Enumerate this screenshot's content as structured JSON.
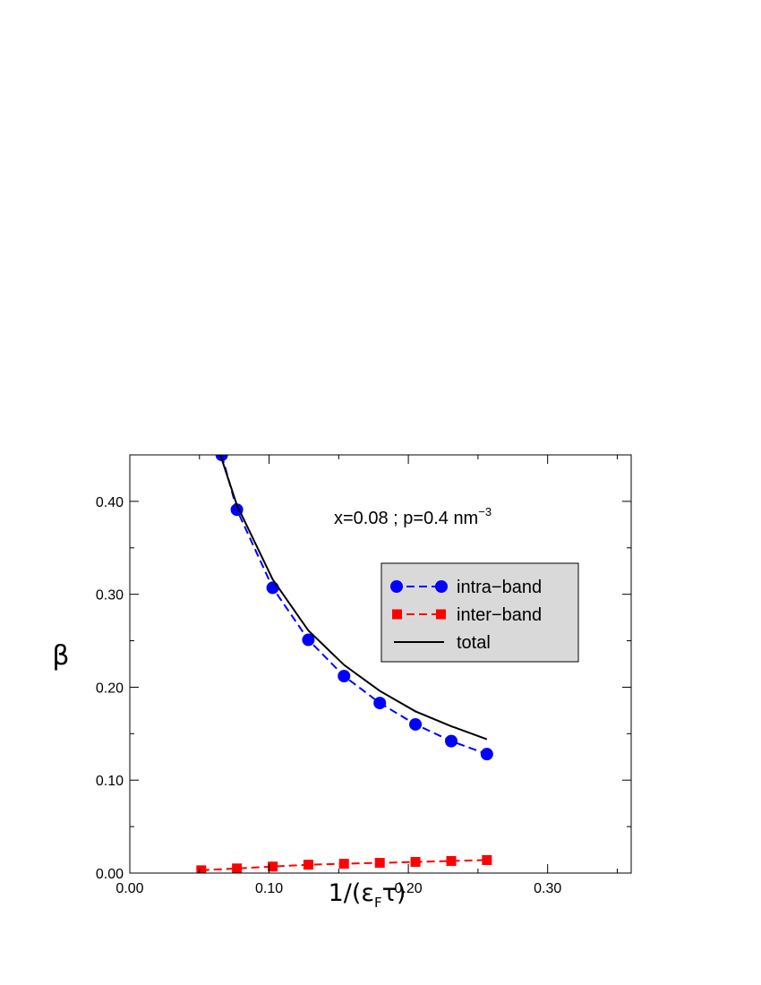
{
  "chart_data": {
    "type": "line",
    "xlabel": {
      "prefix": "1/(ε",
      "sub": "F",
      "suffix": "τ)"
    },
    "ylabel": "β",
    "xlim": [
      0.0,
      0.36
    ],
    "ylim": [
      0.0,
      0.45
    ],
    "xticks": [
      0.0,
      0.1,
      0.2,
      0.3
    ],
    "xtick_labels": [
      "0.00",
      "0.10",
      "0.20",
      "0.30"
    ],
    "yticks": [
      0.0,
      0.1,
      0.2,
      0.3,
      0.4
    ],
    "ytick_labels": [
      "0.00",
      "0.10",
      "0.20",
      "0.30",
      "0.40"
    ],
    "annotation": {
      "text": "x=0.08 ;  p=0.4 nm",
      "sup": "−3"
    },
    "legend_position": "upper-right",
    "series": [
      {
        "name": "intra−band",
        "color": "#0000ff",
        "line_style": "dashed",
        "marker": "circle",
        "x": [
          0.066,
          0.0769,
          0.1026,
          0.1282,
          0.1538,
          0.1795,
          0.2051,
          0.2308,
          0.2564
        ],
        "y": [
          0.45,
          0.391,
          0.307,
          0.251,
          0.212,
          0.183,
          0.16,
          0.142,
          0.128
        ]
      },
      {
        "name": "inter−band",
        "color": "#ff0000",
        "line_style": "dashed",
        "marker": "square",
        "x": [
          0.0513,
          0.0769,
          0.1026,
          0.1282,
          0.1538,
          0.1795,
          0.2051,
          0.2308,
          0.2564
        ],
        "y": [
          0.003,
          0.005,
          0.007,
          0.009,
          0.01,
          0.011,
          0.012,
          0.013,
          0.014
        ]
      },
      {
        "name": "total",
        "color": "#000000",
        "line_style": "solid",
        "marker": "none",
        "x": [
          0.065,
          0.0769,
          0.1026,
          0.1282,
          0.1538,
          0.1795,
          0.2051,
          0.2308,
          0.2564
        ],
        "y": [
          0.45,
          0.396,
          0.316,
          0.261,
          0.224,
          0.196,
          0.174,
          0.158,
          0.144
        ]
      }
    ]
  }
}
